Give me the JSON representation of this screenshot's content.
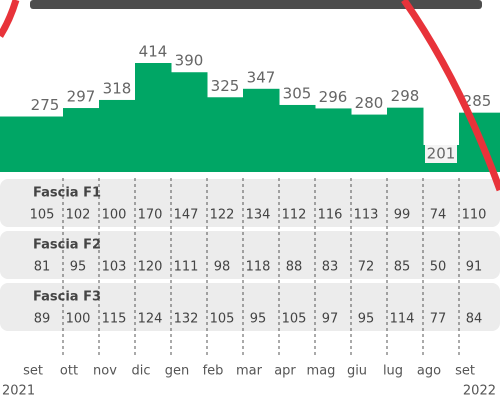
{
  "chart_data": {
    "type": "bar",
    "categories": [
      "set",
      "ott",
      "nov",
      "dic",
      "gen",
      "feb",
      "mar",
      "apr",
      "mag",
      "giu",
      "lug",
      "ago",
      "set"
    ],
    "values": [
      275,
      297,
      318,
      414,
      390,
      325,
      347,
      305,
      296,
      280,
      298,
      201,
      285
    ],
    "color": "#00a665",
    "years": [
      "2021",
      "2022"
    ],
    "rows": [
      {
        "name": "Fascia F1",
        "values": [
          105,
          102,
          100,
          170,
          147,
          122,
          134,
          112,
          116,
          113,
          99,
          74,
          110
        ]
      },
      {
        "name": "Fascia F2",
        "values": [
          81,
          95,
          103,
          120,
          111,
          98,
          118,
          88,
          83,
          72,
          85,
          50,
          91
        ]
      },
      {
        "name": "Fascia F3",
        "values": [
          89,
          100,
          115,
          124,
          132,
          105,
          95,
          105,
          97,
          95,
          114,
          77,
          84
        ]
      }
    ]
  }
}
